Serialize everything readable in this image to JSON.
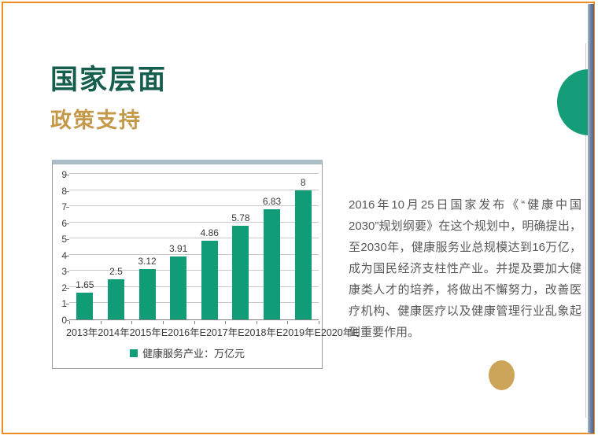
{
  "header": {
    "title": "国家层面",
    "subtitle": "政策支持"
  },
  "chart_data": {
    "type": "bar",
    "title": "",
    "xlabel": "",
    "ylabel": "",
    "categories": [
      "2013年",
      "2014年",
      "2015年E",
      "2016年E",
      "2017年E",
      "2018年E",
      "2019年E",
      "2020年E"
    ],
    "values": [
      1.65,
      2.5,
      3.12,
      3.91,
      4.86,
      5.78,
      6.83,
      8
    ],
    "value_labels": [
      "1.65",
      "2.5",
      "3.12",
      "3.91",
      "4.86",
      "5.78",
      "6.83",
      "8"
    ],
    "legend": "健康服务产业：万亿元",
    "legend_position": "bottom",
    "ylim": [
      0,
      9
    ],
    "ytick_step": 1,
    "grid": true
  },
  "description": {
    "paragraph": "2016年10月25日国家发布《“健康中国2030”规划纲要》在这个规划中，明确提出，至2030年，健康服务业总规模达到16万亿，成为国民经济支柱性产业。并提及要加大健康类人才的培养，将做出不懈努力，改善医疗机构、健康医疗以及健康管理行业乱象起到重要作用。"
  },
  "colors": {
    "bar_green": "#109c77",
    "title_green": "#155e4e",
    "subtitle_gold": "#c49a4a",
    "circle_green": "#159c78",
    "circle_gold": "#cda55a",
    "frame_orange": "#ee8d22",
    "chart_top_strip": "#abbec8"
  }
}
